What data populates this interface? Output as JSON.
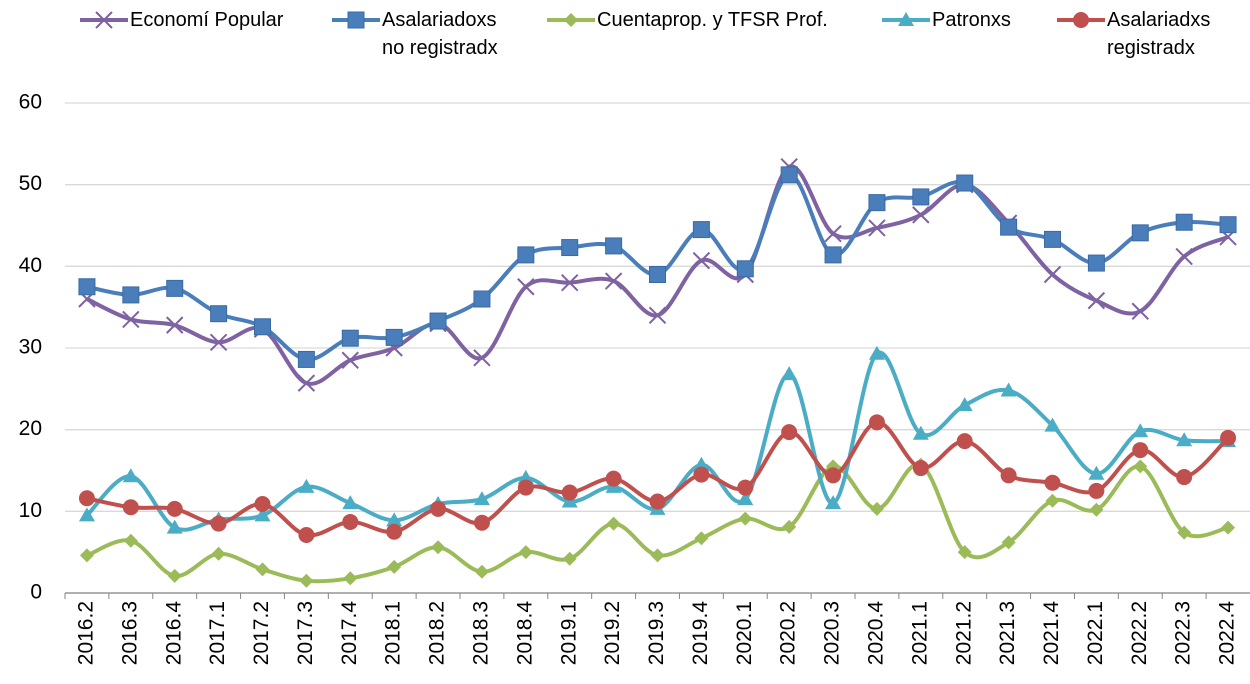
{
  "chart_data": {
    "type": "line",
    "categories": [
      "2016.2",
      "2016.3",
      "2016.4",
      "2017.1",
      "2017.2",
      "2017.3",
      "2017.4",
      "2018.1",
      "2018.2",
      "2018.3",
      "2018.4",
      "2019.1",
      "2019.2",
      "2019.3",
      "2019.4",
      "2020.1",
      "2020.2",
      "2020.3",
      "2020.4",
      "2021.1",
      "2021.2",
      "2021.3",
      "2021.4",
      "2022.1",
      "2022.2",
      "2022.3",
      "2022.4"
    ],
    "series": [
      {
        "name": "Economí Popular",
        "color": "#7e62a1",
        "marker": "x",
        "values": [
          36,
          33.5,
          32.8,
          30.7,
          32.3,
          25.7,
          28.5,
          30,
          33,
          28.8,
          37.5,
          38,
          38.2,
          34,
          40.7,
          39,
          52.2,
          44,
          44.7,
          46.3,
          50,
          45.3,
          39,
          35.8,
          34.5,
          41.2,
          43.6
        ]
      },
      {
        "name": "Asalariadoxs no registradx",
        "color": "#4a7ebb",
        "marker": "square",
        "values": [
          37.5,
          36.5,
          37.3,
          34.2,
          32.6,
          28.6,
          31.2,
          31.3,
          33.3,
          36,
          41.4,
          42.3,
          42.5,
          39,
          44.5,
          39.7,
          51.2,
          41.4,
          47.8,
          48.5,
          50.2,
          44.8,
          43.3,
          40.4,
          44.1,
          45.4,
          45.1
        ]
      },
      {
        "name": "Cuentaprop. y TFSR Prof.",
        "color": "#9bbb59",
        "marker": "diamond",
        "values": [
          4.6,
          6.4,
          2.1,
          4.8,
          2.9,
          1.5,
          1.8,
          3.2,
          5.6,
          2.6,
          5,
          4.2,
          8.5,
          4.6,
          6.7,
          9.1,
          8.1,
          15.5,
          10.3,
          15.7,
          5,
          6.2,
          11.3,
          10.2,
          15.5,
          7.4,
          8
        ]
      },
      {
        "name": "Patronxs",
        "color": "#4bacc6",
        "marker": "triangle",
        "values": [
          9.5,
          14.3,
          8,
          9,
          9.5,
          13,
          11,
          8.9,
          10.9,
          11.5,
          14.1,
          11.2,
          13,
          10.3,
          15.7,
          11.5,
          26.8,
          11,
          29.3,
          19.5,
          23,
          24.8,
          20.5,
          14.6,
          19.8,
          18.7,
          18.6
        ]
      },
      {
        "name": "Asalariadxs registradx",
        "color": "#c0504d",
        "marker": "circle",
        "values": [
          11.6,
          10.5,
          10.3,
          8.5,
          10.9,
          7.1,
          8.7,
          7.5,
          10.3,
          8.6,
          12.9,
          12.3,
          14,
          11.2,
          14.5,
          12.9,
          19.7,
          14.4,
          20.9,
          15.3,
          18.6,
          14.4,
          13.5,
          12.5,
          17.5,
          14.2,
          19
        ]
      }
    ],
    "ylim": [
      0,
      60
    ],
    "yticks": [
      0,
      10,
      20,
      30,
      40,
      50,
      60
    ],
    "grid": true,
    "smooth": true
  }
}
